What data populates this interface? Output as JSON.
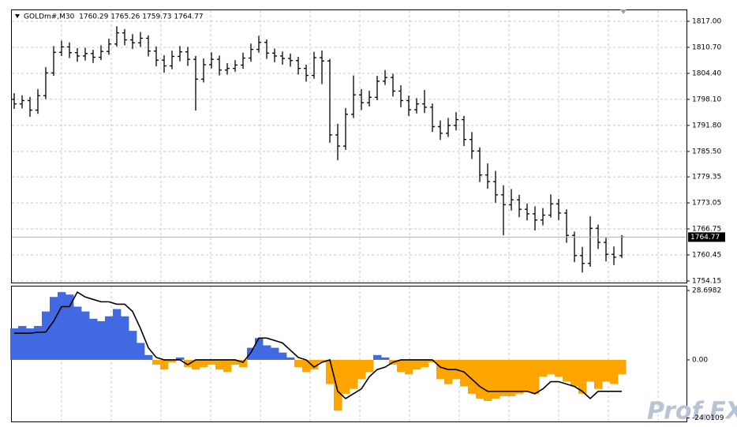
{
  "chart_data": [
    {
      "type": "ohlc",
      "title": "GOLDm#,M30  1760.29 1765.26 1759.73 1764.77",
      "color": "#000000",
      "open": [
        1798.1,
        1797.0,
        1797.8,
        1795.5,
        1799.0,
        1804.5,
        1809.5,
        1810.8,
        1809.4,
        1808.6,
        1809.2,
        1808.3,
        1809.7,
        1811.5,
        1814.2,
        1812.5,
        1811.8,
        1812.9,
        1809.8,
        1807.6,
        1806.2,
        1808.5,
        1809.6,
        1807.8,
        1803.0,
        1806.5,
        1807.8,
        1805.2,
        1805.6,
        1806.4,
        1808.1,
        1810.2,
        1811.9,
        1809.3,
        1808.6,
        1808.0,
        1807.5,
        1805.6,
        1803.9,
        1808.2,
        1807.4,
        1789.5,
        1786.8,
        1794.5,
        1799.2,
        1797.3,
        1798.6,
        1802.5,
        1803.4,
        1800.1,
        1797.8,
        1795.6,
        1797.0,
        1796.2,
        1791.5,
        1789.9,
        1791.8,
        1793.2,
        1788.4,
        1785.6,
        1779.8,
        1778.2,
        1775.0,
        1772.6,
        1773.8,
        1771.5,
        1770.4,
        1768.9,
        1770.1,
        1772.8,
        1770.6,
        1765.2,
        1760.3,
        1758.4,
        1766.9,
        1763.5,
        1760.6,
        1760.29
      ],
      "high": [
        1799.6,
        1799.1,
        1798.7,
        1800.6,
        1805.9,
        1811.0,
        1812.3,
        1811.9,
        1810.5,
        1810.6,
        1810.1,
        1811.2,
        1812.8,
        1815.8,
        1815.1,
        1813.9,
        1814.4,
        1813.6,
        1810.9,
        1808.8,
        1809.9,
        1811.0,
        1810.8,
        1808.6,
        1808.0,
        1809.5,
        1808.7,
        1806.9,
        1807.6,
        1809.4,
        1811.6,
        1813.5,
        1812.6,
        1810.4,
        1809.7,
        1809.2,
        1808.4,
        1806.5,
        1809.6,
        1809.9,
        1807.9,
        1792.2,
        1796.0,
        1803.9,
        1800.6,
        1800.2,
        1803.8,
        1805.2,
        1804.3,
        1801.5,
        1799.0,
        1798.4,
        1800.4,
        1797.1,
        1793.0,
        1793.6,
        1795.0,
        1794.1,
        1790.2,
        1786.5,
        1782.6,
        1780.8,
        1777.3,
        1776.4,
        1775.0,
        1772.9,
        1772.2,
        1771.8,
        1775.1,
        1774.0,
        1771.5,
        1766.1,
        1762.4,
        1769.8,
        1767.8,
        1764.6,
        1762.5,
        1765.26
      ],
      "low": [
        1795.8,
        1795.9,
        1793.9,
        1794.6,
        1798.2,
        1803.8,
        1808.6,
        1808.1,
        1807.2,
        1807.5,
        1806.9,
        1807.6,
        1808.9,
        1810.9,
        1811.2,
        1810.3,
        1810.8,
        1808.5,
        1806.1,
        1804.6,
        1805.4,
        1807.3,
        1806.2,
        1795.4,
        1802.2,
        1805.6,
        1803.9,
        1804.1,
        1804.8,
        1805.5,
        1807.2,
        1809.4,
        1807.9,
        1807.1,
        1806.5,
        1806.0,
        1804.1,
        1802.4,
        1803.1,
        1801.8,
        1787.6,
        1783.4,
        1785.9,
        1793.6,
        1795.5,
        1796.4,
        1797.9,
        1801.6,
        1798.8,
        1796.2,
        1794.1,
        1794.7,
        1794.8,
        1790.2,
        1788.3,
        1789.0,
        1790.6,
        1786.8,
        1783.7,
        1778.1,
        1776.5,
        1773.1,
        1765.2,
        1771.2,
        1769.6,
        1768.8,
        1766.4,
        1767.6,
        1769.5,
        1768.9,
        1763.4,
        1758.7,
        1756.2,
        1757.6,
        1761.9,
        1758.9,
        1758.0,
        1759.73
      ],
      "close": [
        1797.0,
        1797.8,
        1795.5,
        1799.0,
        1804.5,
        1809.5,
        1810.8,
        1809.4,
        1808.6,
        1809.2,
        1808.3,
        1809.7,
        1811.5,
        1814.2,
        1812.5,
        1811.8,
        1812.9,
        1809.8,
        1807.6,
        1806.2,
        1808.5,
        1809.6,
        1807.8,
        1803.0,
        1806.5,
        1807.8,
        1805.2,
        1805.6,
        1806.4,
        1808.1,
        1810.2,
        1811.9,
        1809.3,
        1808.6,
        1808.0,
        1807.5,
        1805.6,
        1803.9,
        1808.2,
        1807.4,
        1789.5,
        1786.8,
        1794.5,
        1799.2,
        1797.3,
        1798.6,
        1802.5,
        1803.4,
        1800.1,
        1797.8,
        1795.6,
        1797.0,
        1796.2,
        1791.5,
        1789.9,
        1791.8,
        1793.2,
        1788.4,
        1785.6,
        1779.8,
        1778.2,
        1775.0,
        1772.6,
        1773.8,
        1771.5,
        1770.4,
        1768.9,
        1770.1,
        1772.8,
        1770.6,
        1765.2,
        1760.3,
        1758.4,
        1766.9,
        1763.5,
        1760.6,
        1759.9,
        1764.77
      ],
      "last_price": 1764.77,
      "ylim": [
        1753.77,
        1819.86
      ],
      "yticks": [
        {
          "value": 1817,
          "label": "1817.00"
        },
        {
          "value": 1810.7,
          "label": "1810.70"
        },
        {
          "value": 1804.4,
          "label": "1804.40"
        },
        {
          "value": 1798.1,
          "label": "1798.10"
        },
        {
          "value": 1791.8,
          "label": "1791.80"
        },
        {
          "value": 1785.5,
          "label": "1785.50"
        },
        1779.35,
        1773.05,
        1766.75,
        1760.45,
        1754.15
      ],
      "grid": true
    },
    {
      "type": "histogram",
      "series": [
        {
          "color": "#4169e1",
          "negative_color": "#ffa500",
          "values": [
            13,
            14,
            13,
            14,
            20,
            26,
            28,
            27,
            22,
            20,
            17,
            16,
            18,
            21,
            18,
            12,
            7,
            2,
            -2,
            -4,
            -1,
            1,
            -3,
            -4,
            -3,
            -2,
            -4,
            -5,
            -2,
            -3,
            5,
            9,
            6,
            5,
            3,
            1,
            -3,
            -5,
            -4,
            -1,
            -10,
            -21,
            -14,
            -12,
            -8,
            -5,
            2,
            1,
            -2,
            -5,
            -6,
            -4,
            -3,
            -1,
            -8,
            -10,
            -8,
            -11,
            -14,
            -16,
            -17,
            -16,
            -15,
            -15,
            -14,
            -13,
            -14,
            -7,
            -6,
            -7,
            -9,
            -11,
            -14,
            -9,
            -12,
            -9,
            -10,
            -6
          ]
        },
        {
          "color": "#000000",
          "values": [
            11,
            11,
            11,
            11.4,
            11.5,
            16,
            22,
            22,
            28,
            26,
            25,
            24,
            24,
            23,
            23,
            20,
            13,
            5,
            1,
            0,
            0,
            0,
            -2,
            0,
            0,
            0,
            0,
            0,
            0,
            -1,
            3,
            9,
            9,
            8,
            7,
            4,
            1,
            0,
            -3,
            -1,
            0,
            -13,
            -16,
            -14,
            -12,
            -7,
            -4,
            -3,
            -1,
            0,
            0,
            0,
            0,
            0,
            -3,
            -4,
            -4,
            -5,
            -8,
            -11,
            -13,
            -13,
            -13,
            -13,
            -13,
            -13,
            -14,
            -12,
            -9,
            -9,
            -10,
            -11,
            -13,
            -16,
            -13,
            -13,
            -13,
            -13
          ]
        }
      ],
      "ylim": [
        -25.8,
        30.65
      ],
      "yticks": [
        28.6982,
        {
          "value": 0,
          "label": "0.00"
        },
        -24.0109
      ]
    }
  ],
  "watermark": "Prof.FX"
}
